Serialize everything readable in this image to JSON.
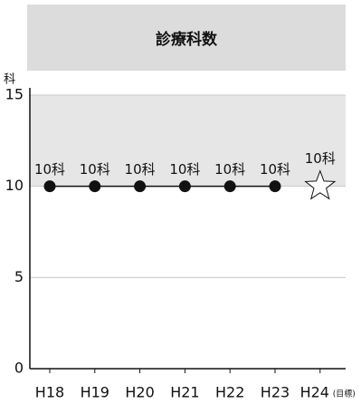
{
  "chart_data": {
    "type": "line",
    "title": "診療科数",
    "y_label": "科",
    "categories": [
      "H18",
      "H19",
      "H20",
      "H21",
      "H22",
      "H23",
      "H24"
    ],
    "target_note": "(目標)",
    "series": [
      {
        "color": "#111111",
        "marker": "dot",
        "values": [
          10,
          10,
          10,
          10,
          10,
          10,
          null
        ],
        "value_labels": [
          "10科",
          "10科",
          "10科",
          "10科",
          "10科",
          "10科",
          null
        ]
      },
      {
        "color": "#111111",
        "marker": "star",
        "values": [
          null,
          null,
          null,
          null,
          null,
          null,
          10
        ],
        "value_labels": [
          null,
          null,
          null,
          null,
          null,
          null,
          "10科"
        ]
      }
    ],
    "ylim": [
      0,
      15
    ],
    "yticks": [
      0,
      5,
      10,
      15
    ],
    "band": {
      "from": 10,
      "to": 15,
      "color": "#e6e6e6"
    },
    "grid": true
  }
}
